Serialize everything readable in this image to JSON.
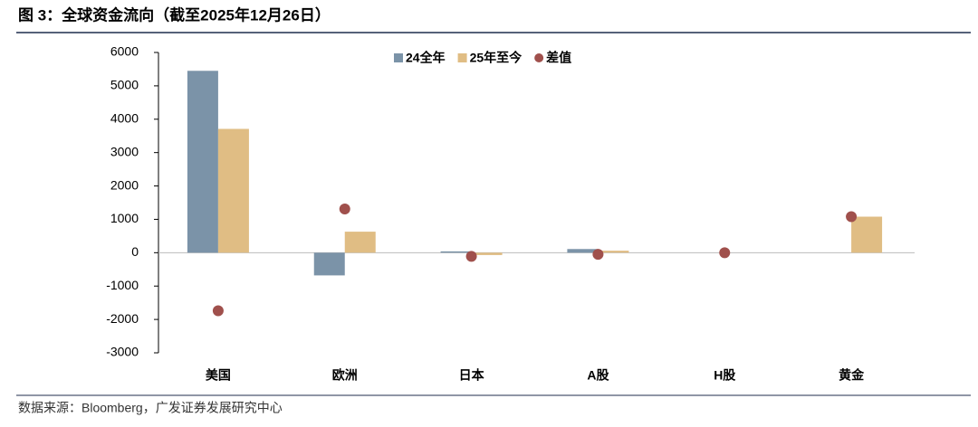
{
  "chart_data": {
    "type": "bar",
    "title": "图 3：全球资金流向（截至2025年12月26日）",
    "source": "数据来源：Bloomberg，广发证券发展研究中心",
    "categories": [
      "美国",
      "欧洲",
      "日本",
      "A股",
      "H股",
      "黄金"
    ],
    "series": [
      {
        "name": "24全年",
        "color": "#7b93a8",
        "kind": "bar",
        "values": [
          5450,
          -680,
          40,
          110,
          0,
          0
        ]
      },
      {
        "name": "25年至今",
        "color": "#e0bd84",
        "kind": "bar",
        "values": [
          3710,
          630,
          -70,
          60,
          0,
          1080
        ]
      },
      {
        "name": "差值",
        "color": "#a0504c",
        "kind": "scatter",
        "values": [
          -1740,
          1310,
          -110,
          -50,
          0,
          1080
        ]
      }
    ],
    "ylim": [
      -3000,
      6000
    ],
    "yticks": [
      -3000,
      -2000,
      -1000,
      0,
      1000,
      2000,
      3000,
      4000,
      5000,
      6000
    ],
    "grid": false,
    "legend": "top"
  }
}
